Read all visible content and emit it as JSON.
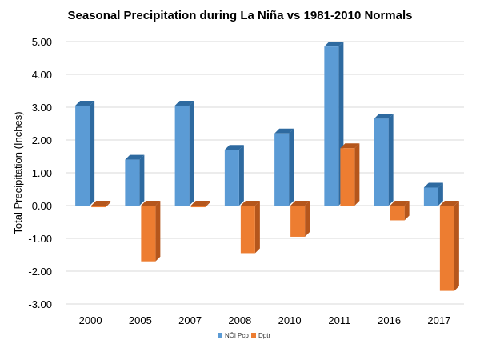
{
  "chart_data": {
    "type": "bar",
    "title": "Seasonal Precipitation during La Niña vs 1981-2010 Normals",
    "xlabel": "",
    "ylabel": "Total Precipitation (Inches)",
    "ylim": [
      -3.0,
      5.0
    ],
    "ytick_step": 1.0,
    "ytick_labels": [
      "-3.00",
      "-2.00",
      "-1.00",
      "0.00",
      "1.00",
      "2.00",
      "3.00",
      "4.00",
      "5.00"
    ],
    "grid": true,
    "legend_position": "bottom-center",
    "categories": [
      "2000",
      "2005",
      "2007",
      "2008",
      "2010",
      "2011",
      "2016",
      "2017"
    ],
    "series": [
      {
        "name": "NŌi Pcp",
        "color": "#5b9bd5",
        "side_color": "#2e6aa0",
        "values": [
          3.05,
          1.4,
          3.05,
          1.7,
          2.2,
          4.85,
          2.65,
          0.55
        ]
      },
      {
        "name": "Dptr",
        "color": "#ed7d31",
        "side_color": "#b5561c",
        "values": [
          -0.05,
          -1.7,
          -0.05,
          -1.45,
          -0.95,
          1.75,
          -0.45,
          -2.6
        ]
      }
    ]
  }
}
